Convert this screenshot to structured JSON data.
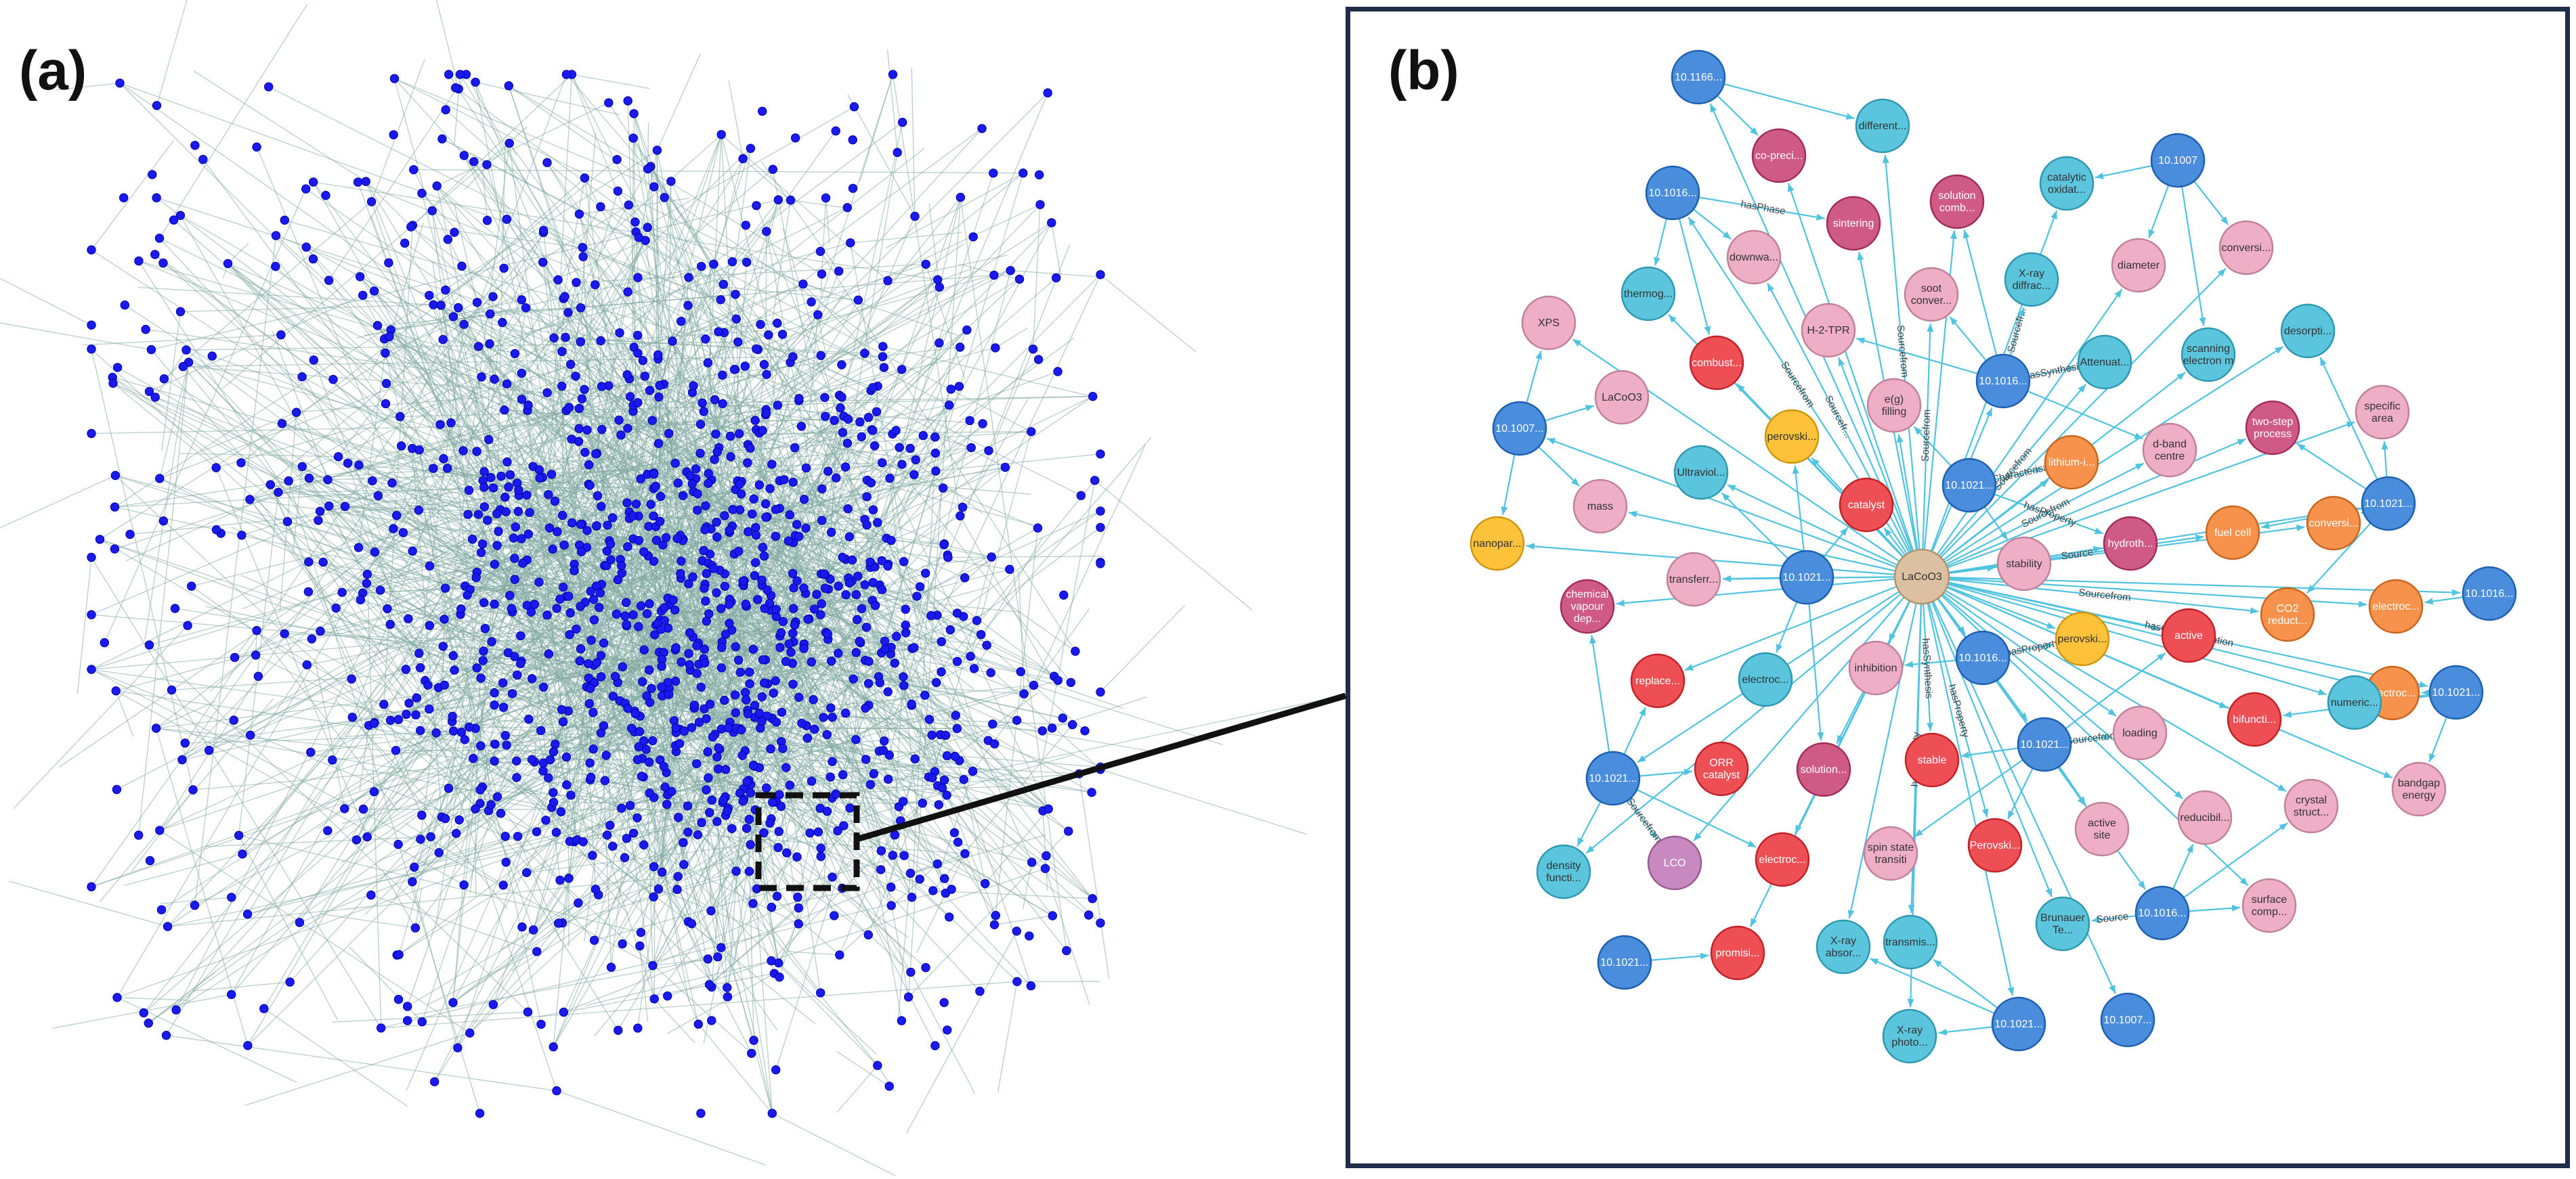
{
  "panel_a": {
    "label": "(a)",
    "node_color": "#1a1aee",
    "edge_color": "#7fa7a0",
    "zoom_box_style": "dashed"
  },
  "panel_b": {
    "label": "(b)",
    "edge_color": "#4fc3e0",
    "colors": {
      "doi": "#4a8ddc",
      "cyan": "#5bc5dd",
      "pink": "#eeaec6",
      "magenta": "#d05a86",
      "red": "#ee4f55",
      "orange": "#f7924d",
      "yellow": "#fbc23a",
      "purple": "#c789c0",
      "center": "#dcc0a2"
    },
    "edge_labels": [
      "Sourcefrom",
      "Sourcefrom",
      "Sourcefrom",
      "Sourcefrom",
      "Source",
      "Sourcefrom",
      "hasCharacterisation",
      "hasSynthesis",
      "hasProperty",
      "hasProperty",
      "hasPhase",
      "Sourcefr...",
      "hasSynthesis",
      "hasCharacterisation",
      "hasProperty",
      "hasProperty",
      "Sourcefrom",
      "Sourcefrom",
      "Source",
      "Sourcefrom",
      "Sourcefr..."
    ],
    "nodes": [
      {
        "label": "LaCoO3",
        "type": "center"
      },
      {
        "label": "10.1166...",
        "type": "doi"
      },
      {
        "label": "co-preci...",
        "type": "magenta"
      },
      {
        "label": "different...",
        "type": "cyan"
      },
      {
        "label": "10.1007",
        "type": "doi"
      },
      {
        "label": "10.1016...",
        "type": "doi"
      },
      {
        "label": "sintering",
        "type": "magenta"
      },
      {
        "label": "solution comb...",
        "type": "magenta"
      },
      {
        "label": "catalytic oxidat...",
        "type": "cyan"
      },
      {
        "label": "conversi...",
        "type": "pink"
      },
      {
        "label": "thermog...",
        "type": "cyan"
      },
      {
        "label": "downwa...",
        "type": "pink"
      },
      {
        "label": "soot conver...",
        "type": "pink"
      },
      {
        "label": "X-ray diffrac...",
        "type": "cyan"
      },
      {
        "label": "diameter",
        "type": "pink"
      },
      {
        "label": "XPS",
        "type": "pink"
      },
      {
        "label": "H-2-TPR",
        "type": "pink"
      },
      {
        "label": "combust...",
        "type": "red"
      },
      {
        "label": "scanning electron m",
        "type": "cyan"
      },
      {
        "label": "desorpti...",
        "type": "cyan"
      },
      {
        "label": "Attenuat...",
        "type": "cyan"
      },
      {
        "label": "10.1016...",
        "type": "doi"
      },
      {
        "label": "LaCoO3",
        "type": "pink"
      },
      {
        "label": "e(g) filling",
        "type": "pink"
      },
      {
        "label": "specific area",
        "type": "pink"
      },
      {
        "label": "10.1007...",
        "type": "doi"
      },
      {
        "label": "perovski...",
        "type": "yellow"
      },
      {
        "label": "two-step process",
        "type": "magenta"
      },
      {
        "label": "d-band centre",
        "type": "pink"
      },
      {
        "label": "lithium-i...",
        "type": "orange"
      },
      {
        "label": "Ultraviol...",
        "type": "cyan"
      },
      {
        "label": "10.1021...",
        "type": "doi"
      },
      {
        "label": "10.1021...",
        "type": "doi"
      },
      {
        "label": "mass",
        "type": "pink"
      },
      {
        "label": "catalyst",
        "type": "red"
      },
      {
        "label": "nanopar...",
        "type": "yellow"
      },
      {
        "label": "fuel cell",
        "type": "orange"
      },
      {
        "label": "conversi...",
        "type": "orange"
      },
      {
        "label": "hydroth...",
        "type": "magenta"
      },
      {
        "label": "transferr...",
        "type": "pink"
      },
      {
        "label": "10.1021...",
        "type": "doi"
      },
      {
        "label": "stability",
        "type": "pink"
      },
      {
        "label": "10.1016...",
        "type": "doi"
      },
      {
        "label": "chemical vapour dep...",
        "type": "magenta"
      },
      {
        "label": "CO2 reduct...",
        "type": "orange"
      },
      {
        "label": "electroc...",
        "type": "orange"
      },
      {
        "label": "active",
        "type": "red"
      },
      {
        "label": "perovski...",
        "type": "yellow"
      },
      {
        "label": "replace...",
        "type": "red"
      },
      {
        "label": "electroc...",
        "type": "cyan"
      },
      {
        "label": "inhibition",
        "type": "pink"
      },
      {
        "label": "10.1016...",
        "type": "doi"
      },
      {
        "label": "10.1021...",
        "type": "doi"
      },
      {
        "label": "electroc...",
        "type": "orange"
      },
      {
        "label": "numeric...",
        "type": "cyan"
      },
      {
        "label": "bifuncti...",
        "type": "red"
      },
      {
        "label": "loading",
        "type": "pink"
      },
      {
        "label": "10.1021...",
        "type": "doi"
      },
      {
        "label": "ORR catalyst",
        "type": "red"
      },
      {
        "label": "solution...",
        "type": "magenta"
      },
      {
        "label": "stable",
        "type": "red"
      },
      {
        "label": "10.1021...",
        "type": "doi"
      },
      {
        "label": "bandgap energy",
        "type": "pink"
      },
      {
        "label": "crystal struct...",
        "type": "pink"
      },
      {
        "label": "density functi...",
        "type": "cyan"
      },
      {
        "label": "LCO",
        "type": "purple"
      },
      {
        "label": "electroc...",
        "type": "red"
      },
      {
        "label": "spin state transiti",
        "type": "pink"
      },
      {
        "label": "Perovski...",
        "type": "red"
      },
      {
        "label": "active site",
        "type": "pink"
      },
      {
        "label": "reducibil...",
        "type": "pink"
      },
      {
        "label": "10.1016...",
        "type": "doi"
      },
      {
        "label": "surface comp...",
        "type": "pink"
      },
      {
        "label": "Brunauer Te...",
        "type": "cyan"
      },
      {
        "label": "X-ray absor...",
        "type": "cyan"
      },
      {
        "label": "transmis...",
        "type": "cyan"
      },
      {
        "label": "10.1021...",
        "type": "doi"
      },
      {
        "label": "promisi...",
        "type": "red"
      },
      {
        "label": "X-ray photo...",
        "type": "cyan"
      },
      {
        "label": "10.1021...",
        "type": "doi"
      },
      {
        "label": "10.1007...",
        "type": "doi"
      }
    ]
  }
}
